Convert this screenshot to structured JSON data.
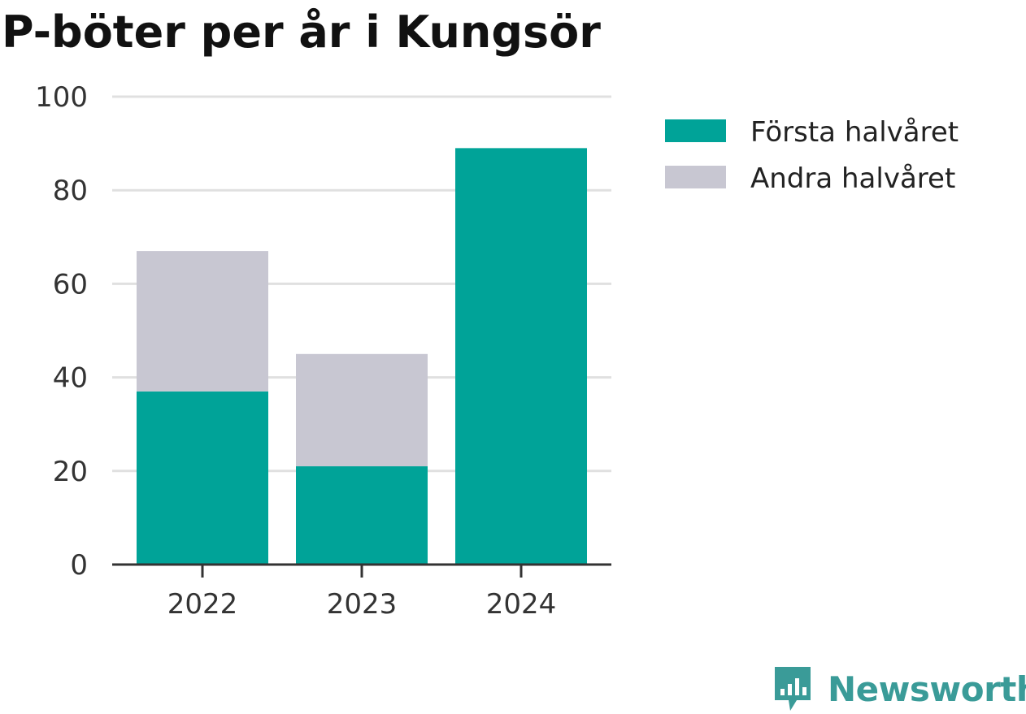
{
  "chart_data": {
    "type": "bar",
    "stacked": true,
    "title": "P-böter per år i Kungsör",
    "categories": [
      "2022",
      "2023",
      "2024"
    ],
    "series": [
      {
        "name": "Första halvåret",
        "values": [
          37,
          21,
          89
        ],
        "color": "#00a398"
      },
      {
        "name": "Andra halvåret",
        "values": [
          30,
          24,
          0
        ],
        "color": "#c8c7d2"
      }
    ],
    "ylim": [
      0,
      100
    ],
    "yticks": [
      "0",
      "20",
      "40",
      "60",
      "80",
      "100"
    ],
    "grid": true,
    "legend_position": "right"
  },
  "logo": {
    "text": "Newsworthy",
    "color": "#3a9b98",
    "icon": "newsworthy-chart-bubble-icon"
  }
}
